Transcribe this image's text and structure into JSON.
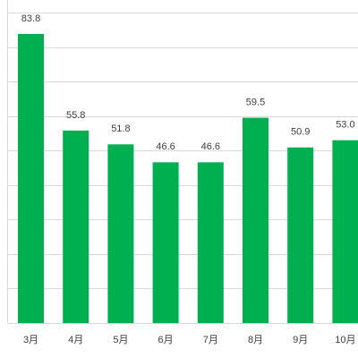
{
  "chart_data": {
    "type": "bar",
    "categories": [
      "3月",
      "4月",
      "5月",
      "6月",
      "7月",
      "8月",
      "9月",
      "10月"
    ],
    "values": [
      83.8,
      55.8,
      51.8,
      46.6,
      46.6,
      59.5,
      50.9,
      53
    ],
    "value_labels": [
      "83.8",
      "55.8",
      "51.8",
      "46.6",
      "46.6",
      "59.5",
      "50.9",
      "53.0"
    ],
    "color": "#00b050",
    "ylim": [
      0,
      90
    ],
    "yticks": [
      0,
      10,
      20,
      30,
      40,
      50,
      60,
      70,
      80,
      90
    ],
    "grid": true
  }
}
